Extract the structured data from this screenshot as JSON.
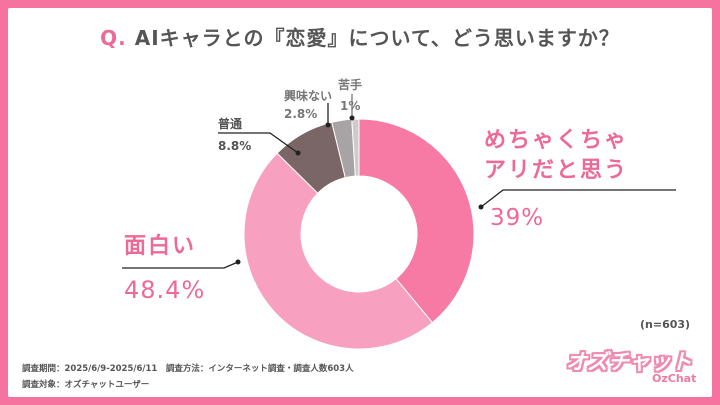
{
  "title_q": "Q.",
  "title_text": "AIキャラとの『恋愛』について、どう思いますか？",
  "n_label": "(n=603)",
  "footer": {
    "line1": "調査期間：2025/6/9-2025/6/11　調査方法：インターネット調査・調査人数603人",
    "line2": "調査対象：オズチャットユーザー"
  },
  "logo": {
    "main": "オズチャット",
    "sub": "OzChat"
  },
  "colors": {
    "border": "#f7739f",
    "slice1": "#f77aa5",
    "slice2": "#f8a0bf",
    "slice3": "#7a6567",
    "slice4": "#a8a3a4",
    "slice5": "#cfcbcc"
  },
  "chart_data": {
    "type": "pie",
    "title": "AIキャラとの『恋愛』について、どう思いますか？",
    "slices": [
      {
        "label_lines": [
          "めちゃくちゃ",
          "アリだと思う"
        ],
        "value": 39,
        "value_label": "39%"
      },
      {
        "label_lines": [
          "面白い"
        ],
        "value": 48.4,
        "value_label": "48.4%"
      },
      {
        "label_lines": [
          "普通"
        ],
        "value": 8.8,
        "value_label": "8.8%"
      },
      {
        "label_lines": [
          "興味ない"
        ],
        "value": 2.8,
        "value_label": "2.8%"
      },
      {
        "label_lines": [
          "苦手"
        ],
        "value": 1,
        "value_label": "1%"
      }
    ]
  }
}
